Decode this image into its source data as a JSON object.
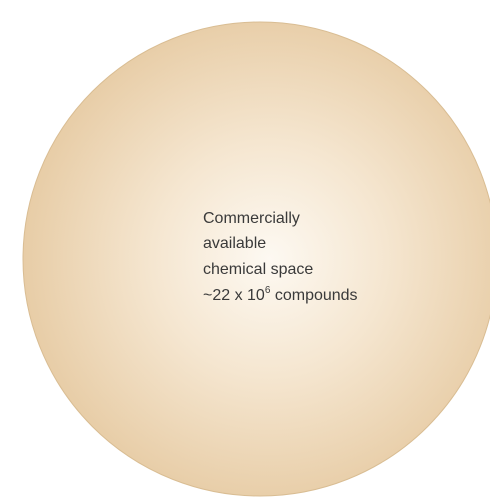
{
  "label": {
    "lines": [
      "Commercially",
      "available",
      "chemical space"
    ],
    "count": {
      "prefix": "~22 x 10",
      "exponent": "6",
      "suffix": " compounds"
    }
  }
}
